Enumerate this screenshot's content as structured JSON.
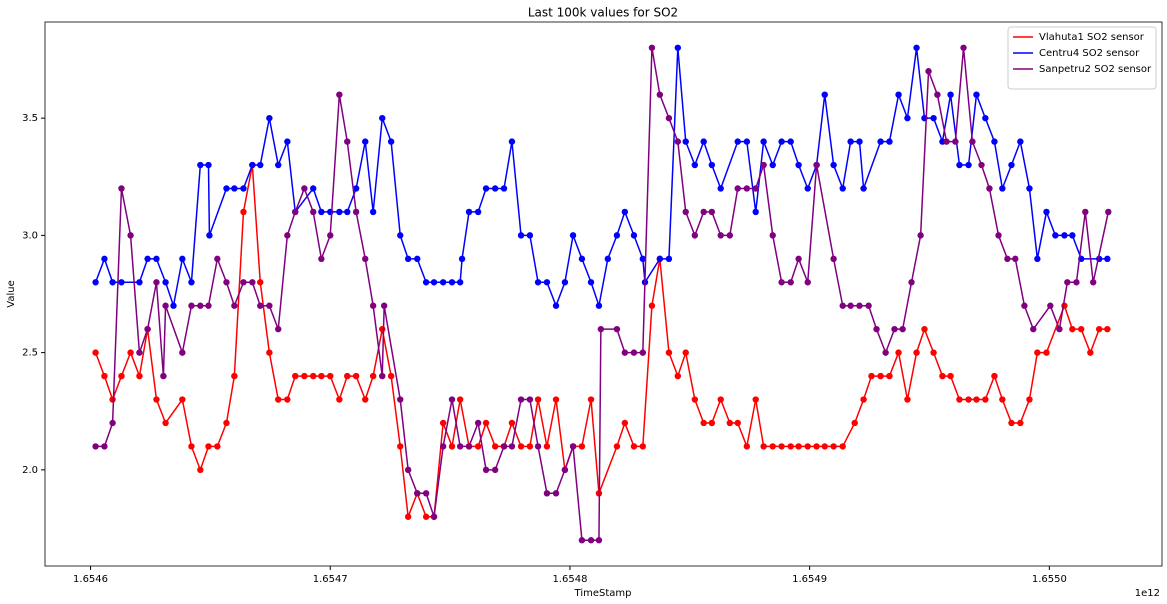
{
  "chart_data": {
    "type": "line",
    "title": "Last 100k values for SO2",
    "x_label": "TimeStamp",
    "y_label": "Value",
    "x_offset_label": "1e12",
    "xlim": [
      1.654581,
      1.655047
    ],
    "ylim": [
      1.59,
      3.91
    ],
    "xticks": [
      1.6546,
      1.6547,
      1.6548,
      1.6549,
      {
        "value": 1.655,
        "label": "1.6550"
      }
    ],
    "yticks": [
      {
        "value": 2,
        "label": "2.0"
      },
      {
        "value": 2.5,
        "label": "2.5"
      },
      {
        "value": 3,
        "label": "3.0"
      },
      {
        "value": 3.5,
        "label": "3.5"
      }
    ],
    "grid": false,
    "legend": "upper right",
    "markers": true,
    "series": [
      {
        "name": "Vlahuta1 SO2 sensor",
        "color": "#ff0000",
        "x": [
          1.6546021,
          1.6546058,
          1.6546092,
          1.6546129,
          1.6546167,
          1.6546204,
          1.6546238,
          1.6546275,
          1.6546313,
          1.6546383,
          1.6546421,
          1.6546458,
          1.6546492,
          1.6546529,
          1.6546567,
          1.65466,
          1.6546638,
          1.6546675,
          1.6546708,
          1.6546746,
          1.6546783,
          1.6546821,
          1.6546854,
          1.6546892,
          1.6546929,
          1.6546963,
          1.6547,
          1.6547038,
          1.6547071,
          1.6547108,
          1.6547146,
          1.6547179,
          1.6547217,
          1.6547254,
          1.6547292,
          1.6547325,
          1.6547363,
          1.65474,
          1.6547433,
          1.6547471,
          1.6547508,
          1.6547542,
          1.6547579,
          1.6547617,
          1.654765,
          1.6547688,
          1.6547725,
          1.6547758,
          1.6547796,
          1.6547833,
          1.6547867,
          1.6547904,
          1.6547942,
          1.6547979,
          1.6548013,
          1.654805,
          1.6548088,
          1.6548121,
          1.6548196,
          1.6548229,
          1.6548267,
          1.6548304,
          1.6548342,
          1.6548375,
          1.6548413,
          1.654845,
          1.6548483,
          1.6548521,
          1.6548558,
          1.6548592,
          1.6548629,
          1.6548667,
          1.65487,
          1.6548738,
          1.6548775,
          1.6548808,
          1.6548846,
          1.6548883,
          1.6548921,
          1.6548954,
          1.6548992,
          1.6549029,
          1.6549063,
          1.65491,
          1.6549138,
          1.6549188,
          1.6549225,
          1.6549258,
          1.6549296,
          1.6549333,
          1.6549371,
          1.6549408,
          1.6549446,
          1.6549479,
          1.6549517,
          1.6549554,
          1.6549588,
          1.6549625,
          1.6549663,
          1.6549696,
          1.6549733,
          1.6549771,
          1.6549804,
          1.6549842,
          1.6549879,
          1.6549917,
          1.654995,
          1.6549988,
          1.6550063,
          1.6550096,
          1.6550133,
          1.6550171,
          1.6550208,
          1.6550242
        ],
        "values": [
          2.5,
          2.4,
          2.3,
          2.4,
          2.5,
          2.4,
          2.6,
          2.3,
          2.2,
          2.3,
          2.1,
          2.0,
          2.1,
          2.1,
          2.2,
          2.4,
          3.1,
          3.3,
          2.8,
          2.5,
          2.3,
          2.3,
          2.4,
          2.4,
          2.4,
          2.4,
          2.4,
          2.3,
          2.4,
          2.4,
          2.3,
          2.4,
          2.6,
          2.4,
          2.1,
          1.8,
          1.9,
          1.8,
          1.8,
          2.2,
          2.1,
          2.3,
          2.1,
          2.1,
          2.2,
          2.1,
          2.1,
          2.2,
          2.1,
          2.1,
          2.3,
          2.1,
          2.3,
          2.0,
          2.1,
          2.1,
          2.3,
          1.9,
          2.1,
          2.2,
          2.1,
          2.1,
          2.7,
          2.9,
          2.5,
          2.4,
          2.5,
          2.3,
          2.2,
          2.2,
          2.3,
          2.2,
          2.2,
          2.1,
          2.3,
          2.1,
          2.1,
          2.1,
          2.1,
          2.1,
          2.1,
          2.1,
          2.1,
          2.1,
          2.1,
          2.2,
          2.3,
          2.4,
          2.4,
          2.4,
          2.5,
          2.3,
          2.5,
          2.6,
          2.5,
          2.4,
          2.4,
          2.3,
          2.3,
          2.3,
          2.3,
          2.4,
          2.3,
          2.2,
          2.2,
          2.3,
          2.5,
          2.5,
          2.7,
          2.6,
          2.6,
          2.5,
          2.6,
          2.6
        ]
      },
      {
        "name": "Centru4 SO2 sensor",
        "color": "#0000ff",
        "x": [
          1.6546021,
          1.6546058,
          1.6546092,
          1.6546129,
          1.6546204,
          1.6546238,
          1.6546275,
          1.6546313,
          1.6546346,
          1.6546383,
          1.6546421,
          1.6546458,
          1.6546492,
          1.6546496,
          1.6546567,
          1.65466,
          1.6546638,
          1.6546675,
          1.6546708,
          1.6546746,
          1.6546783,
          1.6546821,
          1.6546854,
          1.6546929,
          1.6546963,
          1.6547,
          1.6547038,
          1.6547071,
          1.6547108,
          1.6547146,
          1.6547179,
          1.6547217,
          1.6547254,
          1.6547292,
          1.6547325,
          1.6547363,
          1.65474,
          1.6547433,
          1.6547471,
          1.6547508,
          1.6547542,
          1.654755,
          1.6547579,
          1.6547617,
          1.654765,
          1.6547688,
          1.6547725,
          1.6547758,
          1.6547796,
          1.6547833,
          1.6547867,
          1.6547904,
          1.6547942,
          1.6547979,
          1.6548013,
          1.654805,
          1.6548088,
          1.6548121,
          1.6548158,
          1.6548196,
          1.6548229,
          1.6548267,
          1.6548304,
          1.6548313,
          1.6548375,
          1.6548413,
          1.654845,
          1.6548483,
          1.6548521,
          1.6548558,
          1.6548592,
          1.6548629,
          1.65487,
          1.6548738,
          1.6548775,
          1.6548808,
          1.6548846,
          1.6548883,
          1.6548921,
          1.6548954,
          1.6548992,
          1.6549029,
          1.6549063,
          1.65491,
          1.6549138,
          1.6549171,
          1.6549208,
          1.6549225,
          1.6549296,
          1.6549333,
          1.6549371,
          1.6549408,
          1.6549446,
          1.6549479,
          1.6549517,
          1.6549554,
          1.6549588,
          1.6549625,
          1.6549663,
          1.6549696,
          1.6549733,
          1.6549771,
          1.6549804,
          1.6549842,
          1.6549879,
          1.6549917,
          1.654995,
          1.6549988,
          1.6550025,
          1.6550063,
          1.6550096,
          1.6550133,
          1.6550208,
          1.6550242
        ],
        "values": [
          2.8,
          2.9,
          2.8,
          2.8,
          2.8,
          2.9,
          2.9,
          2.8,
          2.7,
          2.9,
          2.8,
          3.3,
          3.3,
          3.0,
          3.2,
          3.2,
          3.2,
          3.3,
          3.3,
          3.5,
          3.3,
          3.4,
          3.1,
          3.2,
          3.1,
          3.1,
          3.1,
          3.1,
          3.2,
          3.4,
          3.1,
          3.5,
          3.4,
          3.0,
          2.9,
          2.9,
          2.8,
          2.8,
          2.8,
          2.8,
          2.8,
          2.9,
          3.1,
          3.1,
          3.2,
          3.2,
          3.2,
          3.4,
          3.0,
          3.0,
          2.8,
          2.8,
          2.7,
          2.8,
          3.0,
          2.9,
          2.8,
          2.7,
          2.9,
          3.0,
          3.1,
          3.0,
          2.9,
          2.8,
          2.9,
          2.9,
          3.8,
          3.4,
          3.3,
          3.4,
          3.3,
          3.2,
          3.4,
          3.4,
          3.1,
          3.4,
          3.3,
          3.4,
          3.4,
          3.3,
          3.2,
          3.3,
          3.6,
          3.3,
          3.2,
          3.4,
          3.4,
          3.2,
          3.4,
          3.4,
          3.6,
          3.5,
          3.8,
          3.5,
          3.5,
          3.4,
          3.6,
          3.3,
          3.3,
          3.6,
          3.5,
          3.4,
          3.2,
          3.3,
          3.4,
          3.2,
          2.9,
          3.1,
          3.0,
          3.0,
          3.0,
          2.9,
          2.9,
          2.9
        ]
      },
      {
        "name": "Sanpetru2 SO2 sensor",
        "color": "#800080",
        "x": [
          1.6546021,
          1.6546058,
          1.6546092,
          1.6546129,
          1.6546167,
          1.6546204,
          1.6546238,
          1.6546275,
          1.6546304,
          1.6546313,
          1.6546383,
          1.6546421,
          1.6546458,
          1.6546492,
          1.6546529,
          1.6546567,
          1.65466,
          1.6546638,
          1.6546675,
          1.6546708,
          1.6546746,
          1.6546783,
          1.6546821,
          1.6546854,
          1.6546892,
          1.6546929,
          1.6546963,
          1.6547,
          1.6547038,
          1.6547071,
          1.6547108,
          1.6547146,
          1.6547179,
          1.6547217,
          1.6547225,
          1.6547292,
          1.6547325,
          1.6547363,
          1.65474,
          1.6547433,
          1.6547471,
          1.6547508,
          1.6547542,
          1.6547579,
          1.6547617,
          1.654765,
          1.6547688,
          1.6547725,
          1.6547758,
          1.6547796,
          1.6547833,
          1.6547867,
          1.6547904,
          1.6547942,
          1.6547979,
          1.6548013,
          1.654805,
          1.6548088,
          1.6548121,
          1.6548129,
          1.6548196,
          1.6548229,
          1.6548267,
          1.6548304,
          1.6548342,
          1.6548375,
          1.6548413,
          1.654845,
          1.6548483,
          1.6548521,
          1.6548558,
          1.6548592,
          1.6548629,
          1.6548667,
          1.65487,
          1.6548738,
          1.6548775,
          1.6548808,
          1.6548846,
          1.6548883,
          1.6548921,
          1.6548954,
          1.6548992,
          1.6549029,
          1.65491,
          1.6549138,
          1.6549171,
          1.6549208,
          1.6549246,
          1.6549279,
          1.6549317,
          1.6549354,
          1.6549388,
          1.6549425,
          1.6549463,
          1.6549496,
          1.6549533,
          1.6549571,
          1.6549608,
          1.6549642,
          1.6549679,
          1.6549717,
          1.654975,
          1.6549788,
          1.6549825,
          1.6549858,
          1.6549896,
          1.6549933,
          1.6550004,
          1.6550042,
          1.6550075,
          1.6550113,
          1.655015,
          1.6550183,
          1.6550246
        ],
        "values": [
          2.1,
          2.1,
          2.2,
          3.2,
          3.0,
          2.5,
          2.6,
          2.8,
          2.4,
          2.7,
          2.5,
          2.7,
          2.7,
          2.7,
          2.9,
          2.8,
          2.7,
          2.8,
          2.8,
          2.7,
          2.7,
          2.6,
          3.0,
          3.1,
          3.2,
          3.1,
          2.9,
          3.0,
          3.6,
          3.4,
          3.1,
          2.9,
          2.7,
          2.4,
          2.7,
          2.3,
          2.0,
          1.9,
          1.9,
          1.8,
          2.1,
          2.3,
          2.1,
          2.1,
          2.2,
          2.0,
          2.0,
          2.1,
          2.1,
          2.3,
          2.3,
          2.1,
          1.9,
          1.9,
          2.0,
          2.1,
          1.7,
          1.7,
          1.7,
          2.6,
          2.6,
          2.5,
          2.5,
          2.5,
          3.8,
          3.6,
          3.5,
          3.4,
          3.1,
          3.0,
          3.1,
          3.1,
          3.0,
          3.0,
          3.2,
          3.2,
          3.2,
          3.3,
          3.0,
          2.8,
          2.8,
          2.9,
          2.8,
          3.3,
          2.9,
          2.7,
          2.7,
          2.7,
          2.7,
          2.6,
          2.5,
          2.6,
          2.6,
          2.8,
          3.0,
          3.7,
          3.6,
          3.4,
          3.4,
          3.8,
          3.4,
          3.3,
          3.2,
          3.0,
          2.9,
          2.9,
          2.7,
          2.6,
          2.7,
          2.6,
          2.8,
          2.8,
          3.1,
          2.8,
          3.1
        ]
      }
    ]
  }
}
